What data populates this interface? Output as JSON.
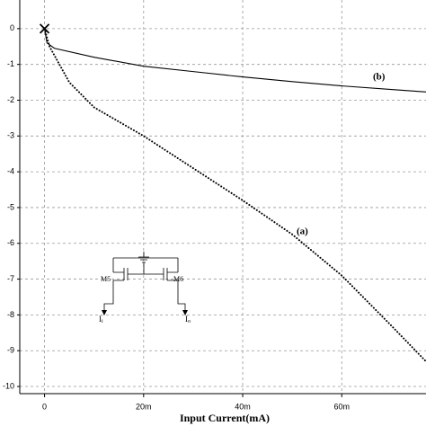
{
  "chart_data": {
    "type": "line",
    "xlabel": "Input Current(mA)",
    "xlim": [
      -5,
      77
    ],
    "ylim": [
      -10.2,
      0.8
    ],
    "xticks": [
      {
        "value": 0,
        "label": "0"
      },
      {
        "value": 20,
        "label": "20m"
      },
      {
        "value": 40,
        "label": "40m"
      },
      {
        "value": 60,
        "label": "60m"
      }
    ],
    "yticks": [
      0,
      -1,
      -2,
      -3,
      -4,
      -5,
      -6,
      -7,
      -8,
      -9,
      -10
    ],
    "grid": true,
    "series": [
      {
        "name": "(a)",
        "color": "#000000",
        "dash": "dotted",
        "x": [
          0,
          1,
          5,
          10,
          20,
          30,
          40,
          50,
          60,
          70,
          77
        ],
        "values": [
          0,
          -0.5,
          -1.5,
          -2.2,
          -3.0,
          -3.9,
          -4.8,
          -5.75,
          -6.9,
          -8.3,
          -9.3
        ]
      },
      {
        "name": "(b)",
        "color": "#000000",
        "dash": "solid",
        "x": [
          0,
          0.5,
          2,
          10,
          20,
          30,
          40,
          50,
          60,
          70,
          77
        ],
        "values": [
          0,
          -0.4,
          -0.55,
          -0.8,
          -1.05,
          -1.2,
          -1.35,
          -1.48,
          -1.6,
          -1.7,
          -1.77
        ]
      }
    ],
    "inset": {
      "m5": "M5",
      "m6": "M6",
      "input": {
        "text": "I",
        "sub": "i"
      },
      "output": {
        "text": "I",
        "sub": "o"
      }
    }
  }
}
